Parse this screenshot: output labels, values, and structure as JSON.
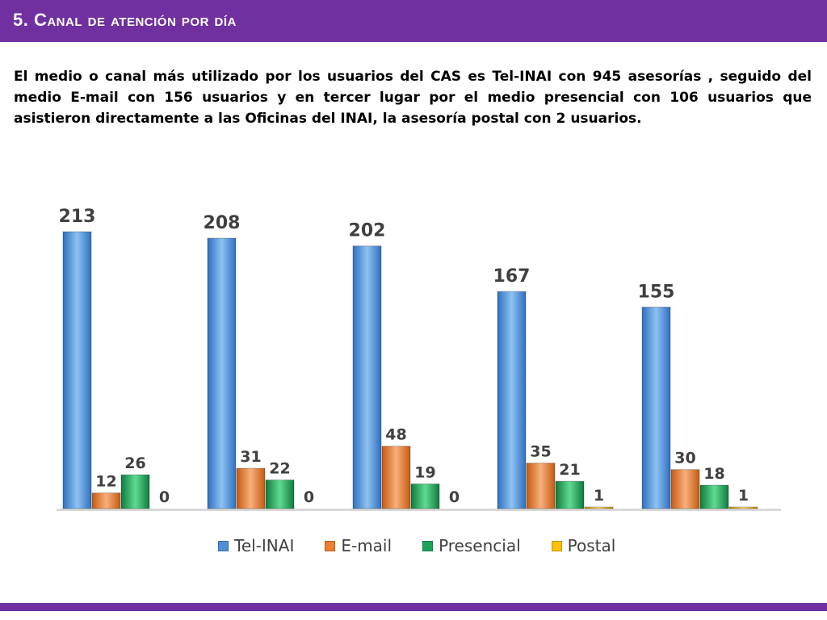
{
  "slide": {
    "title": "5. Canal de atención por día",
    "summary": "El medio o canal más utilizado por los usuarios del CAS es Tel-INAI con 945 asesorías , seguido del medio E-mail con 156 usuarios y en tercer lugar por el medio presencial con 106 usuarios que  asistieron directamente a las Oficinas del INAI, la asesoría postal con 2 usuarios."
  },
  "chart_data": {
    "type": "bar",
    "title": "",
    "xlabel": "",
    "ylabel": "",
    "categories": [
      "",
      "",
      "",
      "",
      ""
    ],
    "ylim": [
      0,
      213
    ],
    "grid": false,
    "legend_position": "bottom",
    "series": [
      {
        "name": "Tel-INAI",
        "color": "#4f8fd6",
        "values": [
          213,
          208,
          202,
          167,
          155
        ]
      },
      {
        "name": "E-mail",
        "color": "#ed7d31",
        "values": [
          12,
          31,
          48,
          35,
          30
        ]
      },
      {
        "name": "Presencial",
        "color": "#1fa35b",
        "values": [
          26,
          22,
          19,
          21,
          18
        ]
      },
      {
        "name": "Postal",
        "color": "#ffc000",
        "values": [
          0,
          0,
          0,
          1,
          1
        ]
      }
    ]
  }
}
